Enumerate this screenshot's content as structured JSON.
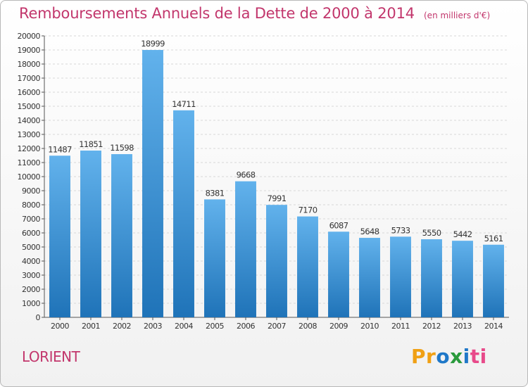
{
  "header": {
    "title": "Remboursements Annuels de la Dette de 2000 à 2014",
    "unit": "(en milliers d'€)"
  },
  "footer": {
    "city": "LORIENT",
    "brand": "Proxiti"
  },
  "colors": {
    "accent": "#c2366c",
    "bar_top": "#62b2ec",
    "bar_bottom": "#1f73b8",
    "grid": "#d8d8d8",
    "axis": "#555555",
    "logo_letters": [
      "#f0a014",
      "#f0a014",
      "#1f78c8",
      "#2a9a3c",
      "#1f78c8",
      "#e84a8a",
      "#e84a8a"
    ]
  },
  "chart_data": {
    "type": "bar",
    "title": "Remboursements Annuels de la Dette de 2000 à 2014",
    "unit": "(en milliers d'€)",
    "xlabel": "",
    "ylabel": "",
    "categories": [
      "2000",
      "2001",
      "2002",
      "2003",
      "2004",
      "2005",
      "2006",
      "2007",
      "2008",
      "2009",
      "2010",
      "2011",
      "2012",
      "2013",
      "2014"
    ],
    "values": [
      11487,
      11851,
      11598,
      18999,
      14711,
      8381,
      9668,
      7991,
      7170,
      6087,
      5648,
      5733,
      5550,
      5442,
      5161
    ],
    "ylim": [
      0,
      20000
    ],
    "ytick_step": 1000,
    "grid": true,
    "data_labels": true,
    "legend": "none"
  }
}
